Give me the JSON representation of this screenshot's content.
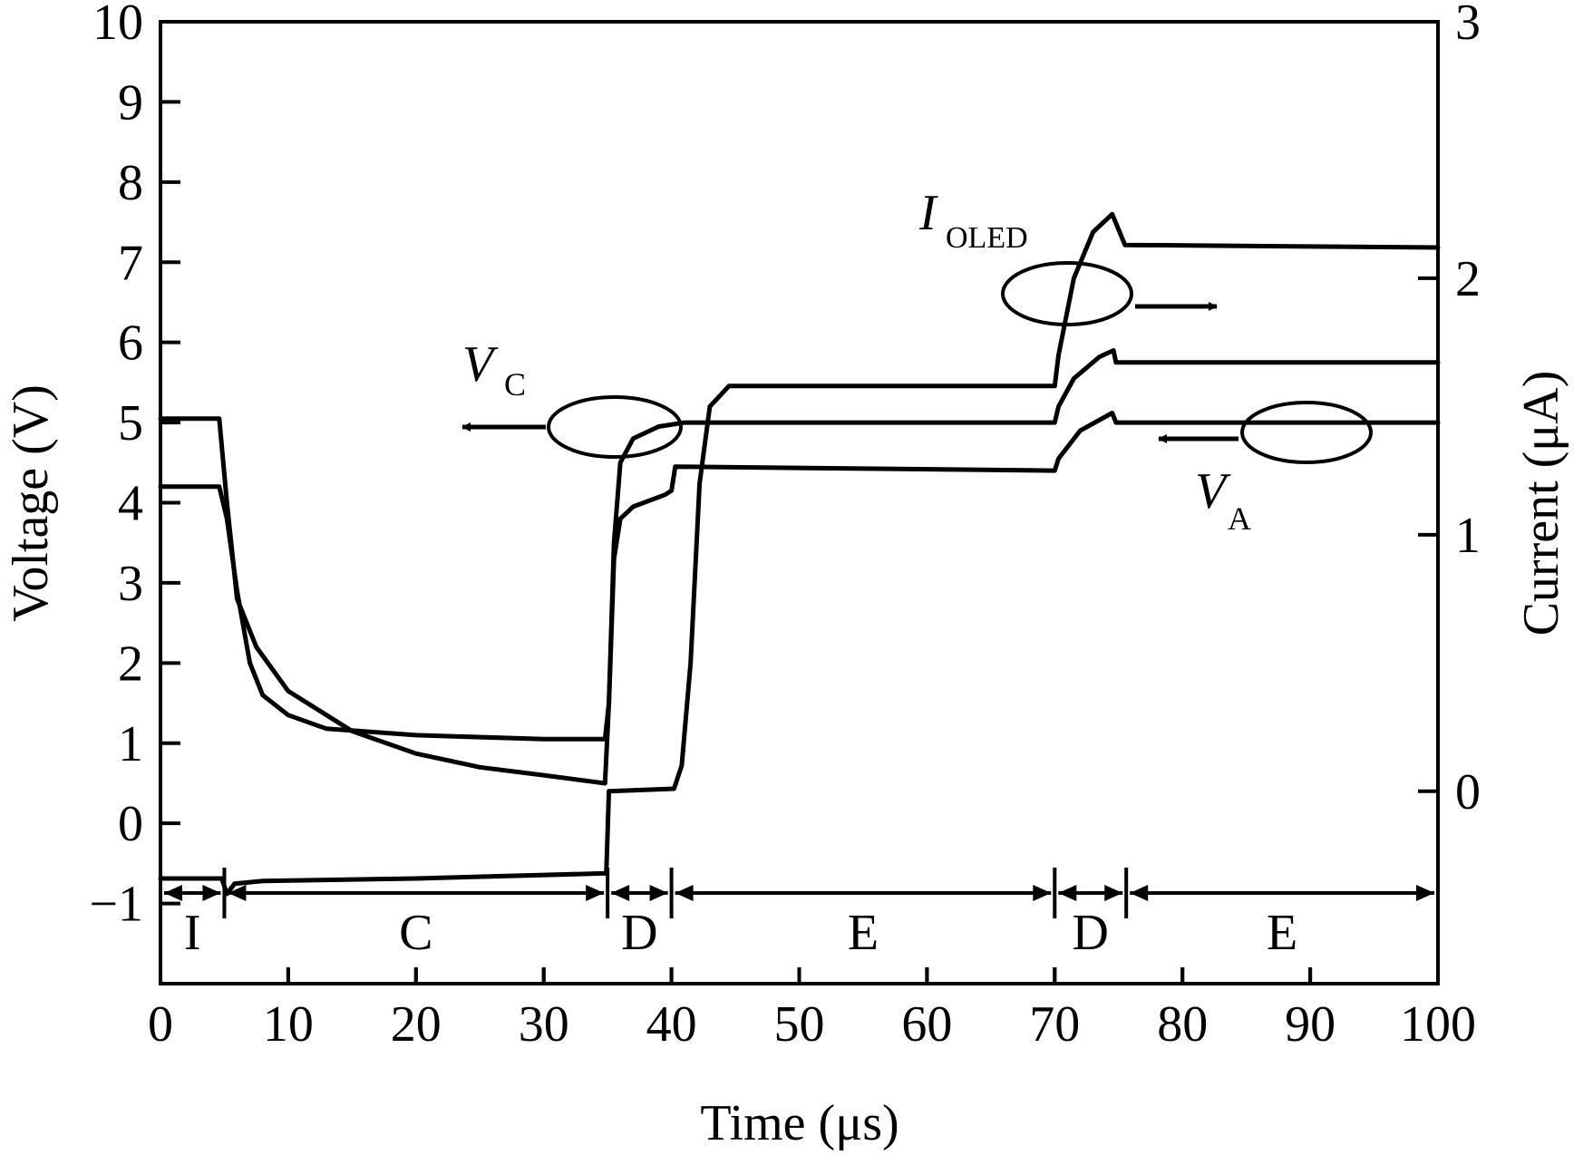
{
  "chart_data": {
    "type": "line",
    "x_axis": {
      "label": "Time (μs)",
      "range": [
        0,
        100
      ],
      "ticks": [
        0,
        10,
        20,
        30,
        40,
        50,
        60,
        70,
        80,
        90,
        100
      ],
      "tick_labels": [
        "0",
        "10",
        "20",
        "30",
        "40",
        "50",
        "60",
        "70",
        "80",
        "90",
        "100"
      ]
    },
    "y_left": {
      "label": "Voltage (V)",
      "range": [
        -2,
        10
      ],
      "ticks": [
        -1,
        0,
        1,
        2,
        3,
        4,
        5,
        6,
        7,
        8,
        9,
        10
      ],
      "tick_labels": [
        "−1",
        "0",
        "1",
        "2",
        "3",
        "4",
        "5",
        "6",
        "7",
        "8",
        "9",
        "10"
      ]
    },
    "y_right": {
      "label": "Current (μA)",
      "range": [
        -0.75,
        3
      ],
      "ticks": [
        0,
        1,
        2,
        3
      ],
      "tick_labels": [
        "0",
        "1",
        "2",
        "3"
      ]
    },
    "grid": false,
    "series": [
      {
        "name": "V_C",
        "axis": "left",
        "points": [
          [
            0,
            5.05
          ],
          [
            4.6,
            5.05
          ],
          [
            5.2,
            4.0
          ],
          [
            6.0,
            2.8
          ],
          [
            7.5,
            2.2
          ],
          [
            10,
            1.65
          ],
          [
            15,
            1.15
          ],
          [
            20,
            0.87
          ],
          [
            25,
            0.7
          ],
          [
            30,
            0.6
          ],
          [
            34.8,
            0.5
          ],
          [
            35.1,
            1.5
          ],
          [
            35.5,
            3.5
          ],
          [
            36.0,
            4.5
          ],
          [
            37.0,
            4.8
          ],
          [
            39.0,
            4.95
          ],
          [
            41,
            5.0
          ],
          [
            70,
            5.0
          ],
          [
            70.3,
            5.2
          ],
          [
            71.5,
            5.55
          ],
          [
            73.5,
            5.82
          ],
          [
            74.6,
            5.9
          ],
          [
            74.8,
            5.75
          ],
          [
            100,
            5.75
          ]
        ]
      },
      {
        "name": "V_A",
        "axis": "left",
        "points": [
          [
            0,
            4.2
          ],
          [
            4.6,
            4.2
          ],
          [
            5.2,
            3.8
          ],
          [
            6.0,
            2.9
          ],
          [
            7.0,
            2.0
          ],
          [
            8.0,
            1.6
          ],
          [
            10,
            1.35
          ],
          [
            13,
            1.18
          ],
          [
            20,
            1.1
          ],
          [
            30,
            1.05
          ],
          [
            34.8,
            1.05
          ],
          [
            35.1,
            1.5
          ],
          [
            35.5,
            3.3
          ],
          [
            36.0,
            3.8
          ],
          [
            37.0,
            3.95
          ],
          [
            39.5,
            4.1
          ],
          [
            40.0,
            4.15
          ],
          [
            40.3,
            4.45
          ],
          [
            70,
            4.4
          ],
          [
            70.3,
            4.55
          ],
          [
            72,
            4.9
          ],
          [
            74.5,
            5.12
          ],
          [
            74.8,
            5.0
          ],
          [
            100,
            5.0
          ]
        ]
      },
      {
        "name": "I_OLED",
        "axis": "right",
        "points": [
          [
            0,
            -0.34
          ],
          [
            4.8,
            -0.34
          ],
          [
            5.2,
            -0.4
          ],
          [
            5.8,
            -0.36
          ],
          [
            8,
            -0.35
          ],
          [
            20,
            -0.34
          ],
          [
            34.9,
            -0.32
          ],
          [
            35.1,
            0.0
          ],
          [
            40.2,
            0.01
          ],
          [
            40.8,
            0.1
          ],
          [
            41.5,
            0.5
          ],
          [
            42.2,
            1.2
          ],
          [
            43.0,
            1.5
          ],
          [
            44.5,
            1.58
          ],
          [
            70,
            1.58
          ],
          [
            70.3,
            1.7
          ],
          [
            71.5,
            2.0
          ],
          [
            73.0,
            2.18
          ],
          [
            74.5,
            2.25
          ],
          [
            75.5,
            2.13
          ],
          [
            100,
            2.12
          ]
        ]
      }
    ],
    "phase_labels": [
      {
        "label": "I",
        "start": 0,
        "end": 5.0
      },
      {
        "label": "C",
        "start": 5.0,
        "end": 35.0
      },
      {
        "label": "D",
        "start": 35.0,
        "end": 40.0
      },
      {
        "label": "E",
        "start": 40.0,
        "end": 70.0
      },
      {
        "label": "D",
        "start": 70.0,
        "end": 75.6
      },
      {
        "label": "E",
        "start": 75.6,
        "end": 100
      }
    ],
    "annotations": {
      "vc_label": "V",
      "vc_sub": "C",
      "va_label": "V",
      "va_sub": "A",
      "ioled_label": "I",
      "ioled_sub": "OLED"
    }
  }
}
